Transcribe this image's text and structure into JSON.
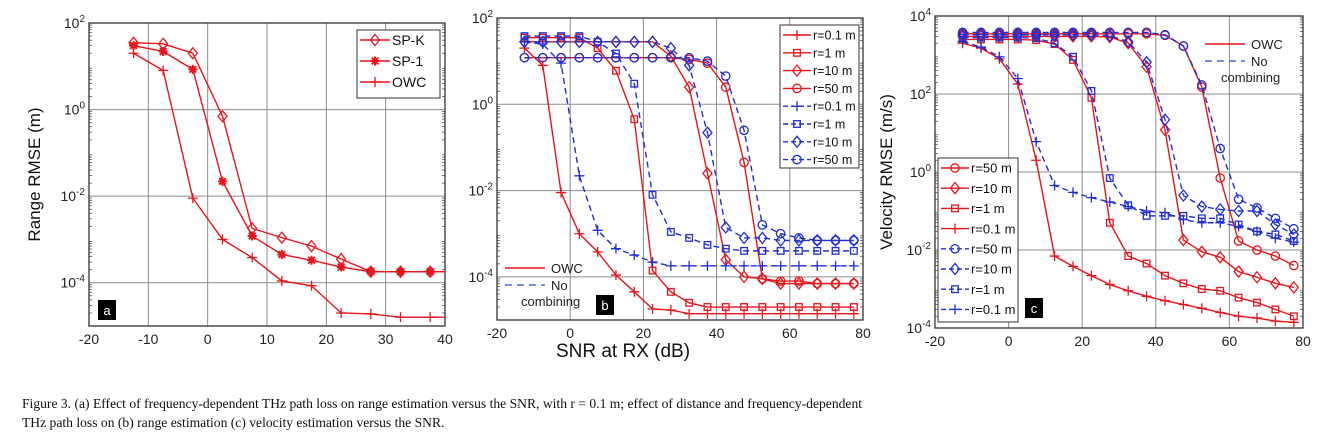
{
  "caption": {
    "line1": "Figure 3.  (a) Effect of frequency-dependent THz path loss on range estimation versus the SNR, with r = 0.1 m; effect of distance and frequency-dependent",
    "line2": "THz path loss on (b) range estimation (c) velocity estimation versus the SNR."
  },
  "shared_xlabel": "SNR at RX (dB)",
  "colors": {
    "red": "#e8141a",
    "blue": "#1f2fd6",
    "grid": "#8c8c8c",
    "axis": "#333333"
  },
  "chart_data": [
    {
      "type": "line",
      "panel": "a",
      "title": "",
      "xlabel": "",
      "ylabel": "Range RMSE (m)",
      "yscale": "log",
      "xlim": [
        -20,
        40
      ],
      "ylim": [
        1e-05,
        100
      ],
      "xticks": [
        -20,
        -10,
        0,
        10,
        20,
        30,
        40
      ],
      "yticks": [
        {
          "v": 100,
          "e": "2"
        },
        {
          "v": 1,
          "e": "0"
        },
        {
          "v": 0.01,
          "e": "-2"
        },
        {
          "v": 0.0001,
          "e": "-4"
        }
      ],
      "grid": true,
      "legend_position": "top-right",
      "x": [
        -12.5,
        -7.5,
        -2.5,
        2.5,
        7.5,
        12.5,
        17.5,
        22.5,
        27.5,
        32.5,
        37.5,
        40
      ],
      "series": [
        {
          "name": "SP-K",
          "color": "red",
          "dash": false,
          "marker": "diamond",
          "values": [
            35,
            33,
            20,
            0.7,
            0.0018,
            0.0011,
            0.0007,
            0.00035,
            0.00018,
            0.00018,
            0.00018,
            0.00018
          ]
        },
        {
          "name": "SP-1",
          "color": "red",
          "dash": false,
          "marker": "asterisk",
          "values": [
            30,
            22,
            8.5,
            0.022,
            0.0012,
            0.00045,
            0.00033,
            0.00023,
            0.00018,
            0.00018,
            0.00018,
            0.00018
          ]
        },
        {
          "name": "OWC",
          "color": "red",
          "dash": false,
          "marker": "plus",
          "values": [
            20,
            8.0,
            0.009,
            0.001,
            0.00038,
            0.00011,
            8.5e-05,
            2e-05,
            1.9e-05,
            1.6e-05,
            1.6e-05,
            1.6e-05
          ]
        }
      ],
      "badge": "a"
    },
    {
      "type": "line",
      "panel": "b",
      "xlabel": "SNR at RX (dB)",
      "ylabel": "",
      "yscale": "log",
      "xlim": [
        -20,
        80
      ],
      "ylim": [
        1e-05,
        100
      ],
      "xticks": [
        -20,
        0,
        20,
        40,
        60,
        80
      ],
      "yticks": [
        {
          "v": 100,
          "e": "2"
        },
        {
          "v": 1,
          "e": "0"
        },
        {
          "v": 0.01,
          "e": "-2"
        },
        {
          "v": 0.0001,
          "e": "-4"
        }
      ],
      "grid": true,
      "legend_position": "top-right",
      "x": [
        -12.5,
        -7.5,
        -2.5,
        2.5,
        7.5,
        12.5,
        17.5,
        22.5,
        27.5,
        32.5,
        37.5,
        42.5,
        47.5,
        52.5,
        57.5,
        62.5,
        67.5,
        72.5,
        77.5
      ],
      "series": [
        {
          "name": "r=0.1 m",
          "color": "red",
          "dash": false,
          "marker": "plus",
          "values": [
            20,
            8,
            0.009,
            0.001,
            0.00038,
            0.00011,
            4.5e-05,
            1.8e-05,
            1.7e-05,
            1.4e-05,
            1.4e-05,
            1.4e-05,
            1.4e-05,
            1.4e-05,
            1.4e-05,
            1.4e-05,
            1.4e-05,
            1.4e-05,
            1.4e-05
          ]
        },
        {
          "name": "r=1 m",
          "color": "red",
          "dash": false,
          "marker": "square",
          "values": [
            35,
            35,
            35,
            35,
            20,
            6,
            0.45,
            0.00014,
            4.5e-05,
            2.5e-05,
            2e-05,
            2e-05,
            2e-05,
            2e-05,
            2e-05,
            2e-05,
            2e-05,
            2e-05,
            2e-05
          ]
        },
        {
          "name": "r=10 m",
          "color": "red",
          "dash": false,
          "marker": "diamond",
          "values": [
            28,
            28,
            28,
            28,
            28,
            28,
            28,
            28,
            13,
            2.5,
            0.025,
            0.00025,
            0.0001,
            9e-05,
            7e-05,
            7e-05,
            7e-05,
            7e-05,
            7e-05
          ]
        },
        {
          "name": "r=50 m",
          "color": "red",
          "dash": false,
          "marker": "circle",
          "values": [
            12,
            12,
            12,
            12,
            12,
            12,
            12,
            12,
            12,
            11,
            9,
            2.5,
            0.045,
            9e-05,
            8e-05,
            8e-05,
            7e-05,
            7e-05,
            7e-05
          ]
        },
        {
          "name": "r=0.1 m",
          "color": "blue",
          "dash": true,
          "marker": "plus",
          "values": [
            28,
            25,
            9,
            0.022,
            0.0012,
            0.00045,
            0.00032,
            0.00022,
            0.00018,
            0.00018,
            0.00018,
            0.00018,
            0.00018,
            0.00018,
            0.00018,
            0.00018,
            0.00018,
            0.00018,
            0.00018
          ]
        },
        {
          "name": "r=1 m",
          "color": "blue",
          "dash": true,
          "marker": "square",
          "values": [
            38,
            38,
            38,
            38,
            28,
            15,
            3,
            0.008,
            0.0011,
            0.0008,
            0.00055,
            0.00045,
            0.0004,
            0.0004,
            0.0004,
            0.0004,
            0.0004,
            0.0004,
            0.0004
          ]
        },
        {
          "name": "r=10 m",
          "color": "blue",
          "dash": true,
          "marker": "diamond",
          "values": [
            28,
            28,
            28,
            28,
            28,
            28,
            28,
            28,
            20,
            8,
            0.22,
            0.0014,
            0.0008,
            0.0008,
            0.0007,
            0.0007,
            0.0007,
            0.0007,
            0.0007
          ]
        },
        {
          "name": "r=50 m",
          "color": "blue",
          "dash": true,
          "marker": "circle",
          "values": [
            12,
            12,
            12,
            12,
            12,
            12,
            12,
            12,
            12,
            12,
            10,
            4.5,
            0.25,
            0.0016,
            0.001,
            0.0008,
            0.0007,
            0.0007,
            0.0007
          ]
        }
      ],
      "annotation_legend": [
        {
          "label": "OWC",
          "color": "red",
          "dash": false
        },
        {
          "label": "No\ncombining",
          "color": "blue",
          "dash": true
        }
      ],
      "badge": "b"
    },
    {
      "type": "line",
      "panel": "c",
      "xlabel": "",
      "ylabel": "Velocity RMSE (m/s)",
      "yscale": "log",
      "xlim": [
        -20,
        80
      ],
      "ylim": [
        0.0001,
        10000.0
      ],
      "xticks": [
        -20,
        0,
        20,
        40,
        60,
        80
      ],
      "yticks": [
        {
          "v": 10000,
          "e": "4"
        },
        {
          "v": 100,
          "e": "2"
        },
        {
          "v": 1,
          "e": "0"
        },
        {
          "v": 0.01,
          "e": "-2"
        },
        {
          "v": 0.0001,
          "e": "-4"
        }
      ],
      "grid": true,
      "legend_position": "bottom-left",
      "x": [
        -12.5,
        -7.5,
        -2.5,
        2.5,
        7.5,
        12.5,
        17.5,
        22.5,
        27.5,
        32.5,
        37.5,
        42.5,
        47.5,
        52.5,
        57.5,
        62.5,
        67.5,
        72.5,
        77.5
      ],
      "series": [
        {
          "name": "r=50 m",
          "color": "red",
          "dash": false,
          "marker": "circle",
          "values": [
            3500,
            3500,
            3500,
            3500,
            3500,
            3500,
            3500,
            3500,
            3500,
            3500,
            3500,
            3200,
            1700,
            150,
            0.7,
            0.017,
            0.01,
            0.007,
            0.004
          ]
        },
        {
          "name": "r=10 m",
          "color": "red",
          "dash": false,
          "marker": "diamond",
          "values": [
            3000,
            3000,
            3000,
            3000,
            3000,
            3000,
            3000,
            3000,
            2900,
            2000,
            500,
            12,
            0.018,
            0.009,
            0.0065,
            0.0028,
            0.002,
            0.0014,
            0.0011
          ]
        },
        {
          "name": "r=1 m",
          "color": "red",
          "dash": false,
          "marker": "square",
          "values": [
            2500,
            2500,
            2500,
            2500,
            2400,
            1900,
            750,
            80,
            0.05,
            0.007,
            0.0045,
            0.0022,
            0.0014,
            0.001,
            0.0009,
            0.0006,
            0.00045,
            0.0003,
            0.0002
          ]
        },
        {
          "name": "r=0.1 m",
          "color": "red",
          "dash": false,
          "marker": "plus",
          "values": [
            2000,
            1500,
            800,
            180,
            2,
            0.007,
            0.0038,
            0.0022,
            0.0013,
            0.0009,
            0.00065,
            0.0005,
            0.0004,
            0.00032,
            0.00025,
            0.0002,
            0.00018,
            0.00015,
            0.00014
          ]
        },
        {
          "name": "r=50 m",
          "color": "blue",
          "dash": true,
          "marker": "circle",
          "values": [
            3800,
            3800,
            3800,
            3800,
            3800,
            3800,
            3800,
            3800,
            3800,
            3800,
            3800,
            3300,
            1700,
            170,
            4,
            0.2,
            0.12,
            0.065,
            0.035
          ]
        },
        {
          "name": "r=10 m",
          "color": "blue",
          "dash": true,
          "marker": "diamond",
          "values": [
            3300,
            3300,
            3300,
            3300,
            3300,
            3300,
            3300,
            3300,
            3100,
            2200,
            650,
            22,
            0.25,
            0.13,
            0.11,
            0.1,
            0.1,
            0.045,
            0.025
          ]
        },
        {
          "name": "r=1 m",
          "color": "blue",
          "dash": true,
          "marker": "square",
          "values": [
            2800,
            2800,
            2800,
            2800,
            2700,
            2000,
            900,
            120,
            0.7,
            0.14,
            0.075,
            0.075,
            0.075,
            0.065,
            0.065,
            0.045,
            0.03,
            0.025,
            0.017
          ]
        },
        {
          "name": "r=0.1 m",
          "color": "blue",
          "dash": true,
          "marker": "plus",
          "values": [
            2200,
            1600,
            900,
            250,
            6,
            0.45,
            0.3,
            0.22,
            0.17,
            0.13,
            0.1,
            0.09,
            0.06,
            0.05,
            0.05,
            0.04,
            0.03,
            0.02,
            0.016
          ]
        }
      ],
      "annotation_legend": [
        {
          "label": "OWC",
          "color": "red",
          "dash": false
        },
        {
          "label": "No\ncombining",
          "color": "blue",
          "dash": true
        }
      ],
      "badge": "c"
    }
  ]
}
